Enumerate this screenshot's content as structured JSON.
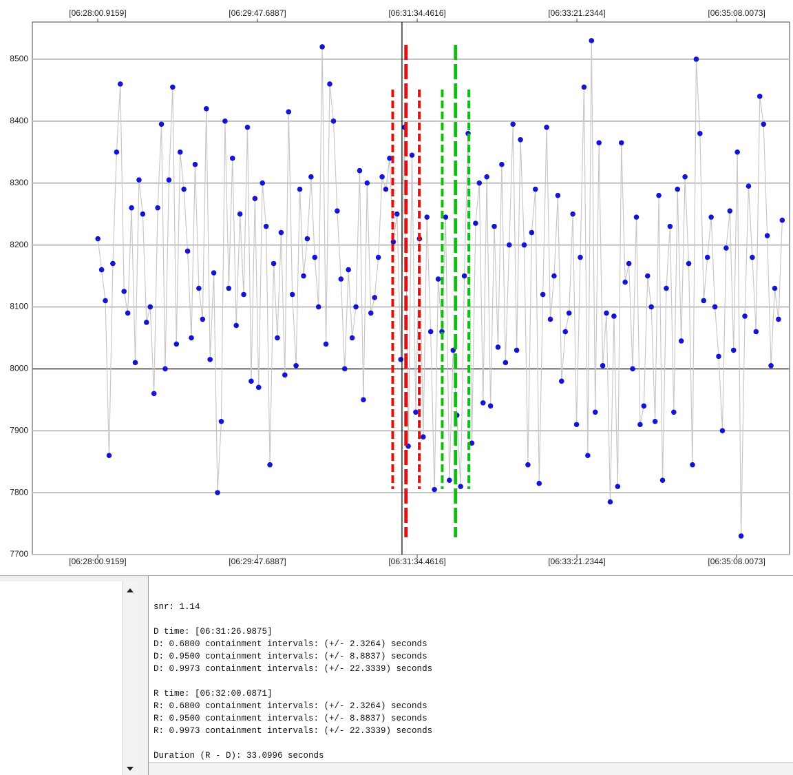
{
  "chart_data": {
    "type": "scatter",
    "connect": true,
    "point_color": "#1414d2",
    "line_color": "#c8c8c8",
    "xlim": [
      23237.2,
      23743.4
    ],
    "ylim": [
      7700,
      8560
    ],
    "xticks": [
      {
        "value": 23280.9159,
        "label": "[06:28:00.9159]"
      },
      {
        "value": 23387.6887,
        "label": "[06:29:47.6887]"
      },
      {
        "value": 23494.4616,
        "label": "[06:31:34.4616]"
      },
      {
        "value": 23601.2344,
        "label": "[06:33:21.2344]"
      },
      {
        "value": 23708.0073,
        "label": "[06:35:08.0073]"
      }
    ],
    "yticks": [
      7700,
      7800,
      7900,
      8000,
      8100,
      8200,
      8300,
      8400,
      8500
    ],
    "grid": true,
    "baseline": 8000,
    "cursor_x": 23484.3,
    "markers": [
      {
        "x": 23486.9875,
        "halfwidth": 8.8837,
        "color": "#e01010"
      },
      {
        "x": 23520.0871,
        "halfwidth": 8.8837,
        "color": "#10c010"
      }
    ],
    "x": [
      23281,
      23283.5,
      23286,
      23288.5,
      23291,
      23293.5,
      23296,
      23298.5,
      23301,
      23303.5,
      23306,
      23308.5,
      23311,
      23313.5,
      23316,
      23318.5,
      23321,
      23323.5,
      23326,
      23328.5,
      23331,
      23333.5,
      23336,
      23338.5,
      23341,
      23343.5,
      23346,
      23348.5,
      23351,
      23353.5,
      23356,
      23358.5,
      23361,
      23363.5,
      23366,
      23368.5,
      23371,
      23373.5,
      23376,
      23378.5,
      23381,
      23383.5,
      23386,
      23388.5,
      23391,
      23393.5,
      23396,
      23398.5,
      23401,
      23403.5,
      23406,
      23408.5,
      23411,
      23413.5,
      23416,
      23418.5,
      23421,
      23423.5,
      23426,
      23428.5,
      23431,
      23433.5,
      23436,
      23438.5,
      23441,
      23443.5,
      23446,
      23448.5,
      23451,
      23453.5,
      23456,
      23458.5,
      23461,
      23463.5,
      23466,
      23468.5,
      23471,
      23473.5,
      23476,
      23478.5,
      23481,
      23483.5,
      23486,
      23488.5,
      23491,
      23493.5,
      23496,
      23498.5,
      23501,
      23503.5,
      23506,
      23508.5,
      23511,
      23513.5,
      23516,
      23518.5,
      23521,
      23523.5,
      23526,
      23528.5,
      23531,
      23533.5,
      23536,
      23538.5,
      23541,
      23543.5,
      23546,
      23548.5,
      23551,
      23553.5,
      23556,
      23558.5,
      23561,
      23563.5,
      23566,
      23568.5,
      23571,
      23573.5,
      23576,
      23578.5,
      23581,
      23583.5,
      23586,
      23588.5,
      23591,
      23593.5,
      23596,
      23598.5,
      23601,
      23603.5,
      23606,
      23608.5,
      23611,
      23613.5,
      23616,
      23618.5,
      23621,
      23623.5,
      23626,
      23628.5,
      23631,
      23633.5,
      23636,
      23638.5,
      23641,
      23643.5,
      23646,
      23648.5,
      23651,
      23653.5,
      23656,
      23658.5,
      23661,
      23663.5,
      23666,
      23668.5,
      23671,
      23673.5,
      23676,
      23678.5,
      23681,
      23683.5,
      23686,
      23688.5,
      23691,
      23693.5,
      23696,
      23698.5,
      23701,
      23703.5,
      23706,
      23708.5,
      23711,
      23713.5,
      23716,
      23718.5,
      23721,
      23723.5,
      23726,
      23728.5,
      23731,
      23733.5,
      23736,
      23738.5
    ],
    "values": [
      8210,
      8160,
      8110,
      7860,
      8170,
      8350,
      8460,
      8125,
      8090,
      8260,
      8010,
      8305,
      8250,
      8075,
      8100,
      7960,
      8260,
      8395,
      8000,
      8305,
      8455,
      8040,
      8350,
      8290,
      8190,
      8050,
      8330,
      8130,
      8080,
      8420,
      8015,
      8155,
      7800,
      7915,
      8400,
      8130,
      8340,
      8070,
      8250,
      8120,
      8390,
      7980,
      8275,
      7970,
      8300,
      8230,
      7845,
      8170,
      8050,
      8220,
      7990,
      8415,
      8120,
      8005,
      8290,
      8150,
      8210,
      8310,
      8180,
      8100,
      8520,
      8040,
      8460,
      8400,
      8255,
      8145,
      8000,
      8160,
      8050,
      8100,
      8320,
      7950,
      8300,
      8090,
      8115,
      8180,
      8310,
      8290,
      8340,
      8205,
      8250,
      8015,
      8390,
      7875,
      8345,
      7930,
      8210,
      7890,
      8245,
      8060,
      7805,
      8145,
      8060,
      8245,
      7820,
      8030,
      7925,
      7810,
      8150,
      8380,
      7880,
      8235,
      8300,
      7945,
      8310,
      7940,
      8230,
      8035,
      8330,
      8010,
      8200,
      8395,
      8030,
      8370,
      8200,
      7845,
      8220,
      8290,
      7815,
      8120,
      8390,
      8080,
      8150,
      8280,
      7980,
      8060,
      8090,
      8250,
      7910,
      8180,
      8455,
      7860,
      8530,
      7930,
      8365,
      8005,
      8090,
      7785,
      8085,
      7810,
      8365,
      8140,
      8170,
      8000,
      8245,
      7910,
      7940,
      8150,
      8100,
      7915,
      8280,
      7820,
      8130,
      8230,
      7930,
      8290,
      8045,
      8310,
      8170,
      7845,
      8500,
      8380,
      8110,
      8180,
      8245,
      8100,
      8020,
      7900,
      8195,
      8255,
      8030,
      8350,
      7730,
      8085,
      8295,
      8180,
      8060,
      8440,
      8395,
      8215,
      8005,
      8130,
      8080,
      8240
    ]
  },
  "report": [
    [
      "snr: 1.14"
    ],
    [
      "D time: [06:31:26.9875]",
      "D: 0.6800 containment intervals: (+/- 2.3264) seconds",
      "D: 0.9500 containment intervals: (+/- 8.8837) seconds",
      "D: 0.9973 containment intervals: (+/- 22.3339) seconds"
    ],
    [
      "R time: [06:32:00.0871]",
      "R: 0.6800 containment intervals: (+/- 2.3264) seconds",
      "R: 0.9500 containment intervals: (+/- 8.8837) seconds",
      "R: 0.9973 containment intervals: (+/- 22.3339) seconds"
    ],
    [
      "Duration (R - D): 33.0996 seconds"
    ]
  ]
}
